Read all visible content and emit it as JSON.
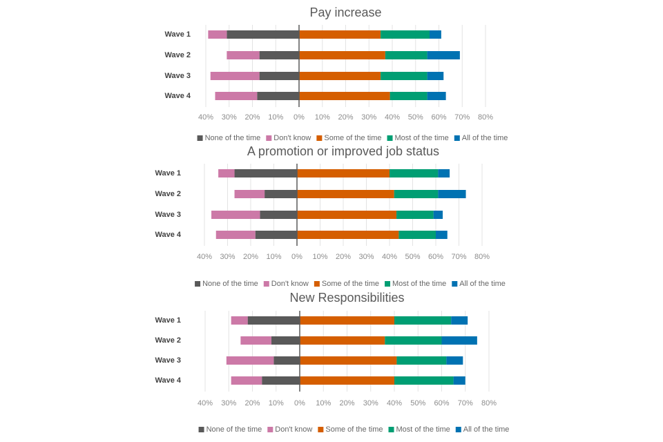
{
  "chart_data": [
    {
      "type": "diverging-bar",
      "title": "Pay increase",
      "categories": [
        "Wave 1",
        "Wave 2",
        "Wave 3",
        "Wave 4"
      ],
      "series": [
        {
          "name": "None of the time",
          "color": "#595959",
          "values": [
            -31,
            -17,
            -17,
            -18
          ]
        },
        {
          "name": "Don't know",
          "color": "#cc79a7",
          "values": [
            -8,
            -14,
            -21,
            -18
          ]
        },
        {
          "name": "Some of the time",
          "color": "#d55e00",
          "values": [
            35,
            37,
            35,
            39
          ]
        },
        {
          "name": "Most of the time",
          "color": "#009e73",
          "values": [
            21,
            18,
            20,
            16
          ]
        },
        {
          "name": "All of the time",
          "color": "#0072b2",
          "values": [
            5,
            14,
            7,
            8
          ]
        }
      ],
      "xlim": [
        -40,
        80
      ],
      "xticks": [
        {
          "value": -40,
          "label": "40%"
        },
        {
          "value": -30,
          "label": "30%"
        },
        {
          "value": -20,
          "label": "20%"
        },
        {
          "value": -10,
          "label": "10%"
        },
        {
          "value": 0,
          "label": "0%"
        },
        {
          "value": 10,
          "label": "10%"
        },
        {
          "value": 20,
          "label": "20%"
        },
        {
          "value": 30,
          "label": "30%"
        },
        {
          "value": 40,
          "label": "40%"
        },
        {
          "value": 50,
          "label": "50%"
        },
        {
          "value": 60,
          "label": "60%"
        },
        {
          "value": 70,
          "label": "70%"
        },
        {
          "value": 80,
          "label": "80%"
        }
      ],
      "grid": true,
      "legend": "bottom"
    },
    {
      "type": "diverging-bar",
      "title": "A promotion or improved job status",
      "categories": [
        "Wave 1",
        "Wave 2",
        "Wave 3",
        "Wave 4"
      ],
      "series": [
        {
          "name": "None of the time",
          "color": "#595959",
          "values": [
            -27,
            -14,
            -16,
            -18
          ]
        },
        {
          "name": "Don't know",
          "color": "#cc79a7",
          "values": [
            -7,
            -13,
            -21,
            -17
          ]
        },
        {
          "name": "Some of the time",
          "color": "#d55e00",
          "values": [
            40,
            42,
            43,
            44
          ]
        },
        {
          "name": "Most of the time",
          "color": "#009e73",
          "values": [
            21,
            19,
            16,
            16
          ]
        },
        {
          "name": "All of the time",
          "color": "#0072b2",
          "values": [
            5,
            12,
            4,
            5
          ]
        }
      ],
      "xlim": [
        -40,
        80
      ],
      "xticks": [
        {
          "value": -40,
          "label": "40%"
        },
        {
          "value": -30,
          "label": "30%"
        },
        {
          "value": -20,
          "label": "20%"
        },
        {
          "value": -10,
          "label": "10%"
        },
        {
          "value": 0,
          "label": "0%"
        },
        {
          "value": 10,
          "label": "10%"
        },
        {
          "value": 20,
          "label": "20%"
        },
        {
          "value": 30,
          "label": "30%"
        },
        {
          "value": 40,
          "label": "40%"
        },
        {
          "value": 50,
          "label": "50%"
        },
        {
          "value": 60,
          "label": "60%"
        },
        {
          "value": 70,
          "label": "70%"
        },
        {
          "value": 80,
          "label": "80%"
        }
      ],
      "grid": true,
      "legend": "bottom"
    },
    {
      "type": "diverging-bar",
      "title": "New Responsibilities",
      "categories": [
        "Wave 1",
        "Wave 2",
        "Wave 3",
        "Wave 4"
      ],
      "series": [
        {
          "name": "None of the time",
          "color": "#595959",
          "values": [
            -22,
            -12,
            -11,
            -16
          ]
        },
        {
          "name": "Don't know",
          "color": "#cc79a7",
          "values": [
            -7,
            -13,
            -20,
            -13
          ]
        },
        {
          "name": "Some of the time",
          "color": "#d55e00",
          "values": [
            40,
            36,
            41,
            40
          ]
        },
        {
          "name": "Most of the time",
          "color": "#009e73",
          "values": [
            24,
            24,
            21,
            25
          ]
        },
        {
          "name": "All of the time",
          "color": "#0072b2",
          "values": [
            7,
            15,
            7,
            5
          ]
        }
      ],
      "xlim": [
        -40,
        80
      ],
      "xticks": [
        {
          "value": -40,
          "label": "40%"
        },
        {
          "value": -30,
          "label": "30%"
        },
        {
          "value": -20,
          "label": "20%"
        },
        {
          "value": -10,
          "label": "10%"
        },
        {
          "value": 0,
          "label": "0%"
        },
        {
          "value": 10,
          "label": "10%"
        },
        {
          "value": 20,
          "label": "20%"
        },
        {
          "value": 30,
          "label": "30%"
        },
        {
          "value": 40,
          "label": "40%"
        },
        {
          "value": 50,
          "label": "50%"
        },
        {
          "value": 60,
          "label": "60%"
        },
        {
          "value": 70,
          "label": "70%"
        },
        {
          "value": 80,
          "label": "80%"
        }
      ],
      "grid": true,
      "legend": "bottom"
    }
  ]
}
